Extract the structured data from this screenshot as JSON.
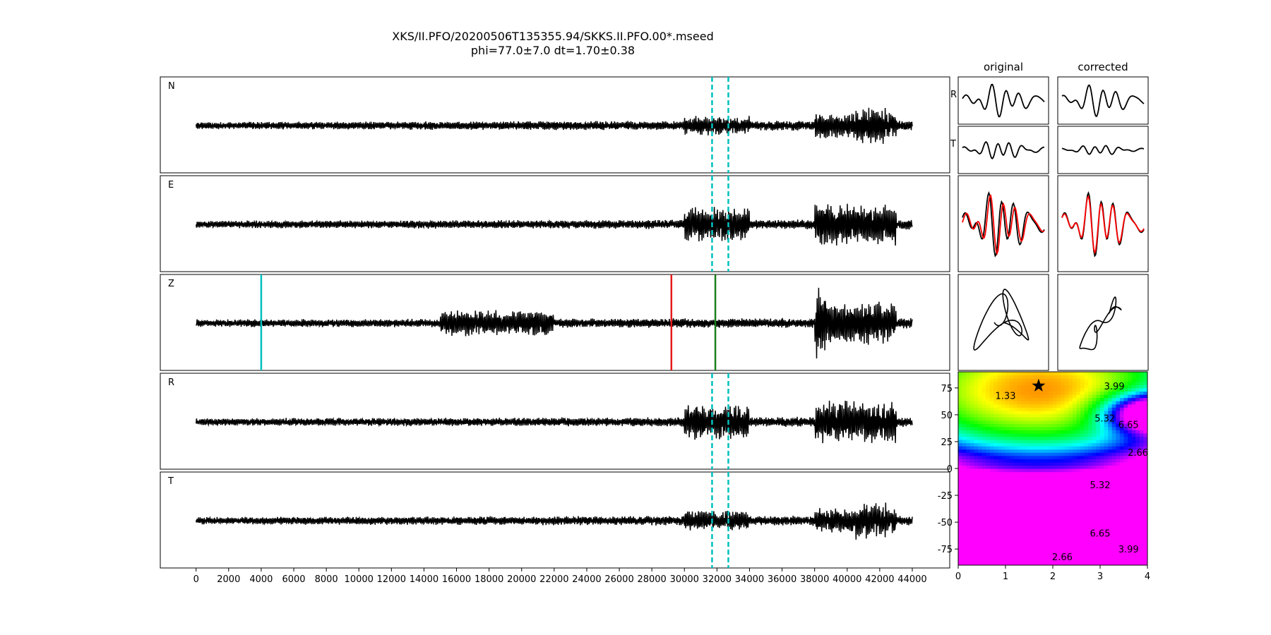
{
  "figure": {
    "title_line1": "XKS/II.PFO/20200506T135355.94/SKKS.II.PFO.00*.mseed",
    "title_line2": "phi=77.0±7.0 dt=1.70±0.38"
  },
  "colors": {
    "trace": "#000000",
    "window_marker": "#00bfbf",
    "pick_cyan": "#00bfbf",
    "pick_red": "#e41a1c",
    "pick_green": "#1a7f1a",
    "corrected_trace": "#ff0000"
  },
  "chart_data": [
    {
      "type": "line",
      "name": "seismogram-traces",
      "panels": [
        "N",
        "E",
        "Z",
        "R",
        "T"
      ],
      "xticks": [
        0,
        2000,
        4000,
        6000,
        8000,
        10000,
        12000,
        14000,
        16000,
        18000,
        20000,
        22000,
        24000,
        26000,
        28000,
        30000,
        32000,
        34000,
        36000,
        38000,
        40000,
        42000,
        44000
      ],
      "xlim": [
        -2200,
        46300
      ],
      "data_range": [
        0,
        44000
      ],
      "window_markers": [
        31700,
        32700
      ],
      "z_picks": [
        {
          "x": 4000,
          "color": "cyan"
        },
        {
          "x": 29200,
          "color": "red"
        },
        {
          "x": 31900,
          "color": "green"
        }
      ]
    },
    {
      "type": "line",
      "name": "particle-waveforms",
      "column_titles": [
        "original",
        "corrected"
      ],
      "row_labels": [
        "R",
        "T"
      ]
    },
    {
      "type": "heatmap",
      "name": "error-surface",
      "xlim": [
        0,
        4
      ],
      "ylim": [
        -90,
        90
      ],
      "xticks": [
        0,
        1,
        2,
        3,
        4
      ],
      "yticks": [
        -75,
        -50,
        -25,
        0,
        25,
        50,
        75
      ],
      "contour_labels": [
        "1.33",
        "3.99",
        "5.32",
        "6.65",
        "2.66",
        "5.32",
        "6.65",
        "3.99",
        "2.66"
      ],
      "best": {
        "dt": 1.7,
        "phi": 77.0
      }
    }
  ]
}
